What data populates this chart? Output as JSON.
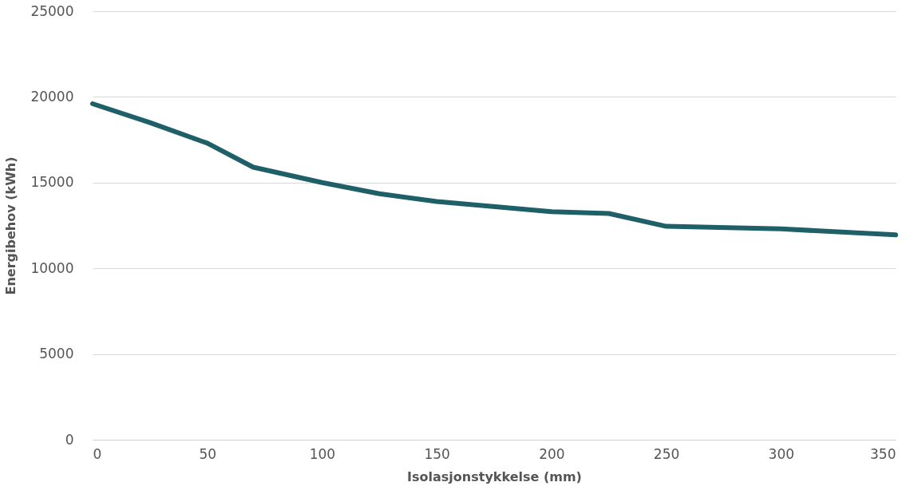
{
  "chart_data": {
    "type": "line",
    "xlabel": "Isolasjonstykkelse (mm)",
    "ylabel": "Energibehov (kWh)",
    "x": [
      0,
      25,
      50,
      70,
      100,
      125,
      150,
      200,
      225,
      250,
      300,
      350
    ],
    "series": [
      {
        "color": "#1f5f68",
        "values": [
          19600,
          18500,
          17300,
          15900,
          15000,
          14350,
          13900,
          13300,
          13200,
          12450,
          12300,
          11950
        ]
      }
    ],
    "xlim": [
      0,
      350
    ],
    "xticks": [
      0,
      50,
      100,
      150,
      200,
      250,
      300,
      350
    ],
    "ylim": [
      0,
      25000
    ],
    "yticks": [
      0,
      5000,
      10000,
      15000,
      20000,
      25000
    ],
    "grid": "y",
    "legend": false,
    "marker": "none",
    "line_style": "solid"
  }
}
